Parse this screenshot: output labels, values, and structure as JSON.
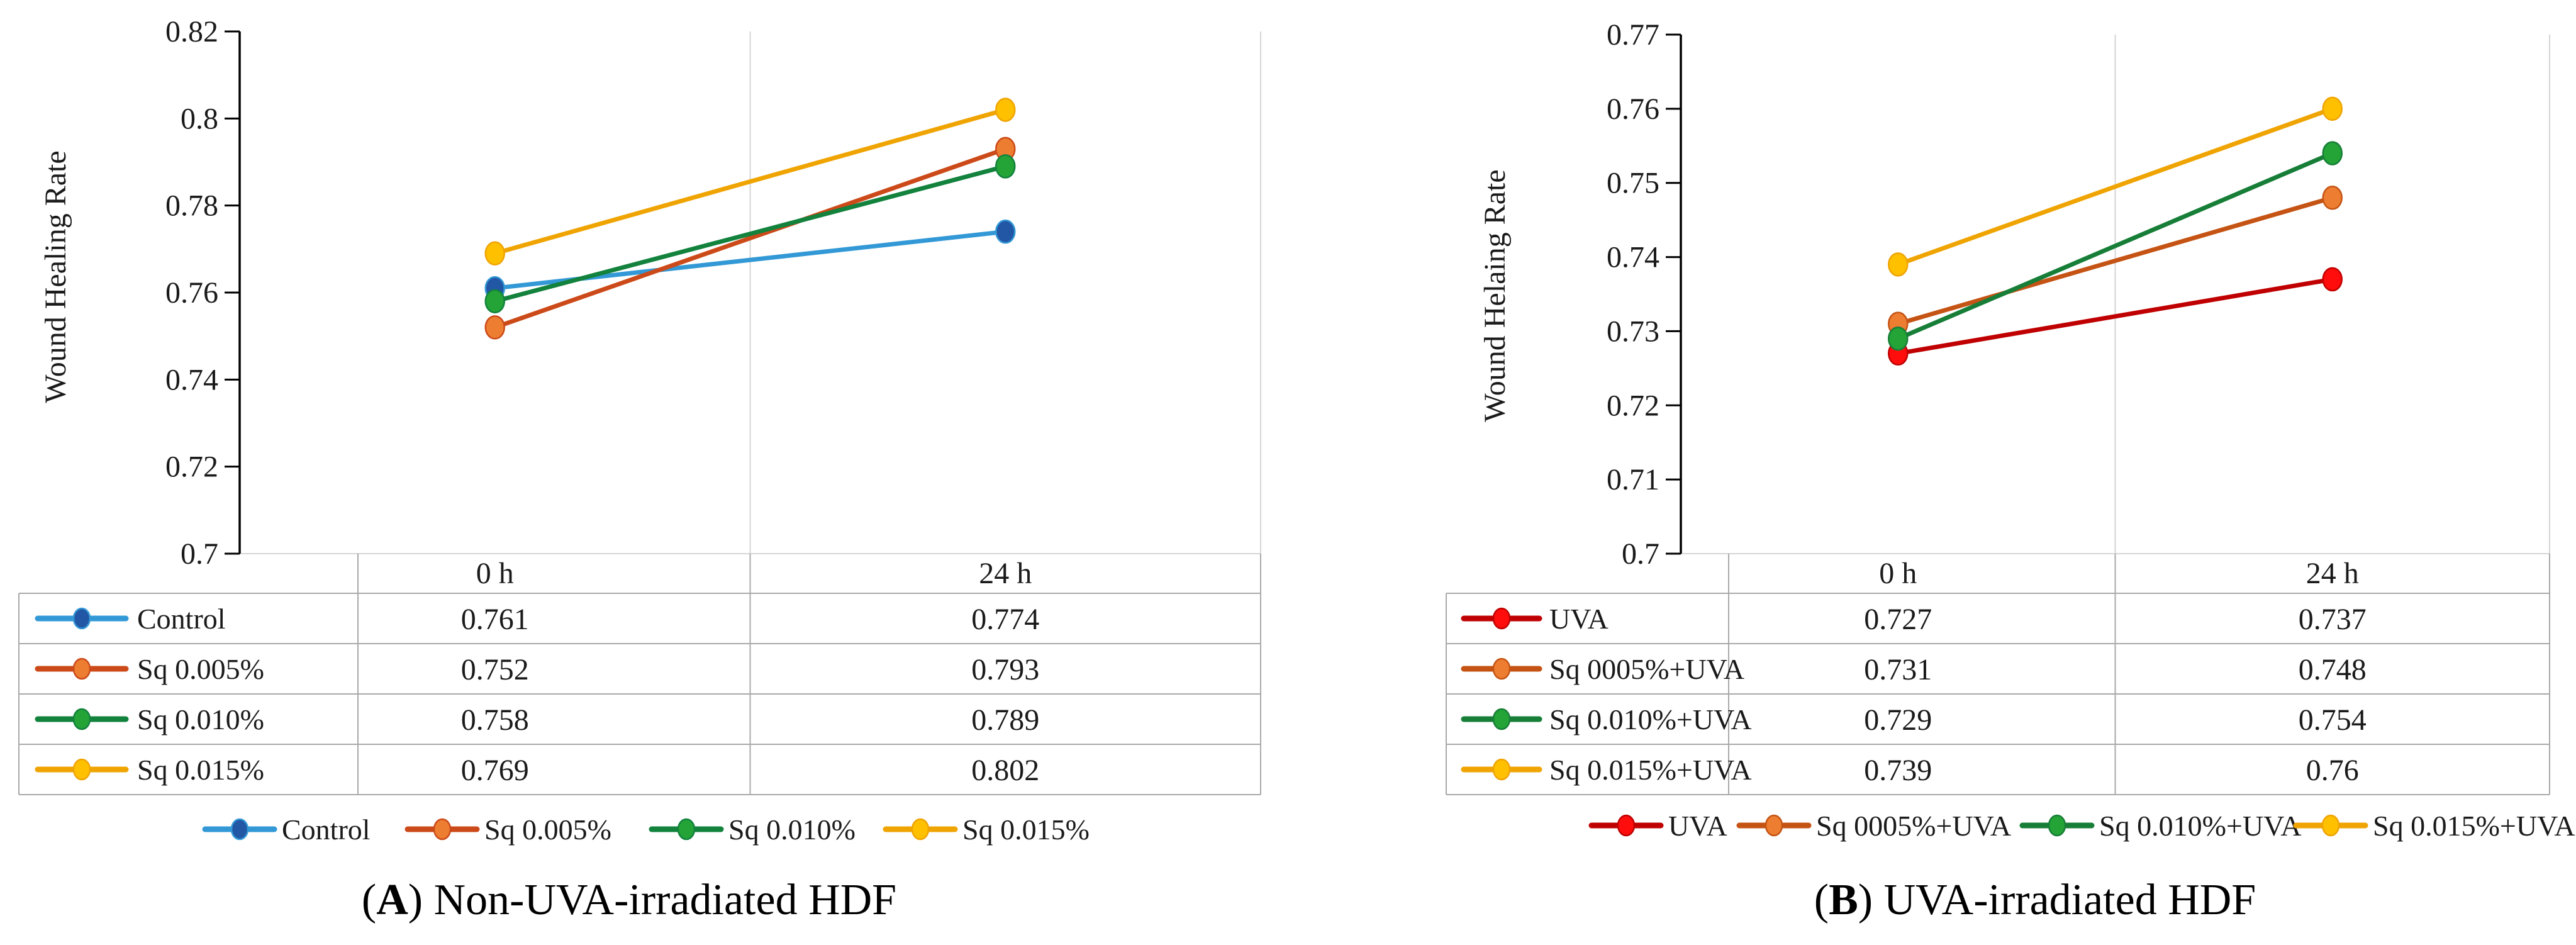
{
  "figure": {
    "background": "#ffffff"
  },
  "chart_data": [
    {
      "type": "line",
      "panel_letter": "A",
      "caption": {
        "open": "(",
        "letter": "A",
        "rest": ") Non-UVA-irradiated HDF"
      },
      "ylabel": "Wound Healing Rate",
      "categories": [
        "0 h",
        "24 h"
      ],
      "ylim": [
        0.7,
        0.82
      ],
      "yticks": [
        "0.7",
        "0.72",
        "0.74",
        "0.76",
        "0.78",
        "0.8",
        "0.82"
      ],
      "grid": "category-boundary-verticals",
      "legend_position": "bottom",
      "data_table_shown": true,
      "series": [
        {
          "name": "Control",
          "values": [
            0.761,
            0.774
          ],
          "values_text": [
            "0.761",
            "0.774"
          ],
          "line_color": "#3399D6",
          "marker_color": "#2257A5"
        },
        {
          "name": "Sq 0.005%",
          "values": [
            0.752,
            0.793
          ],
          "values_text": [
            "0.752",
            "0.793"
          ],
          "line_color": "#CC4A19",
          "marker_color": "#ED7D31"
        },
        {
          "name": "Sq 0.010%",
          "values": [
            0.758,
            0.789
          ],
          "values_text": [
            "0.758",
            "0.789"
          ],
          "line_color": "#12823D",
          "marker_color": "#24A437"
        },
        {
          "name": "Sq 0.015%",
          "values": [
            0.769,
            0.802
          ],
          "values_text": [
            "0.769",
            "0.802"
          ],
          "line_color": "#EFA402",
          "marker_color": "#FFC000"
        }
      ]
    },
    {
      "type": "line",
      "panel_letter": "B",
      "caption": {
        "open": "(",
        "letter": "B",
        "rest": ") UVA-irradiated HDF"
      },
      "ylabel": "Wound Helaing Rate",
      "categories": [
        "0 h",
        "24 h"
      ],
      "ylim": [
        0.7,
        0.77
      ],
      "yticks": [
        "0.7",
        "0.71",
        "0.72",
        "0.73",
        "0.74",
        "0.75",
        "0.76",
        "0.77"
      ],
      "grid": "category-boundary-verticals",
      "legend_position": "bottom",
      "data_table_shown": true,
      "series": [
        {
          "name": "UVA",
          "values": [
            0.727,
            0.737
          ],
          "values_text": [
            "0.727",
            "0.737"
          ],
          "line_color": "#C00000",
          "marker_color": "#FF0D0D"
        },
        {
          "name": "Sq 0005%+UVA",
          "values": [
            0.731,
            0.748
          ],
          "values_text": [
            "0.731",
            "0.748"
          ],
          "line_color": "#C55414",
          "marker_color": "#ED7D31"
        },
        {
          "name": "Sq 0.010%+UVA",
          "values": [
            0.729,
            0.754
          ],
          "values_text": [
            "0.729",
            "0.754"
          ],
          "line_color": "#177E38",
          "marker_color": "#24A437"
        },
        {
          "name": "Sq 0.015%+UVA",
          "values": [
            0.739,
            0.76
          ],
          "values_text": [
            "0.739",
            "0.76"
          ],
          "line_color": "#EFA402",
          "marker_color": "#FFC000"
        }
      ]
    }
  ]
}
